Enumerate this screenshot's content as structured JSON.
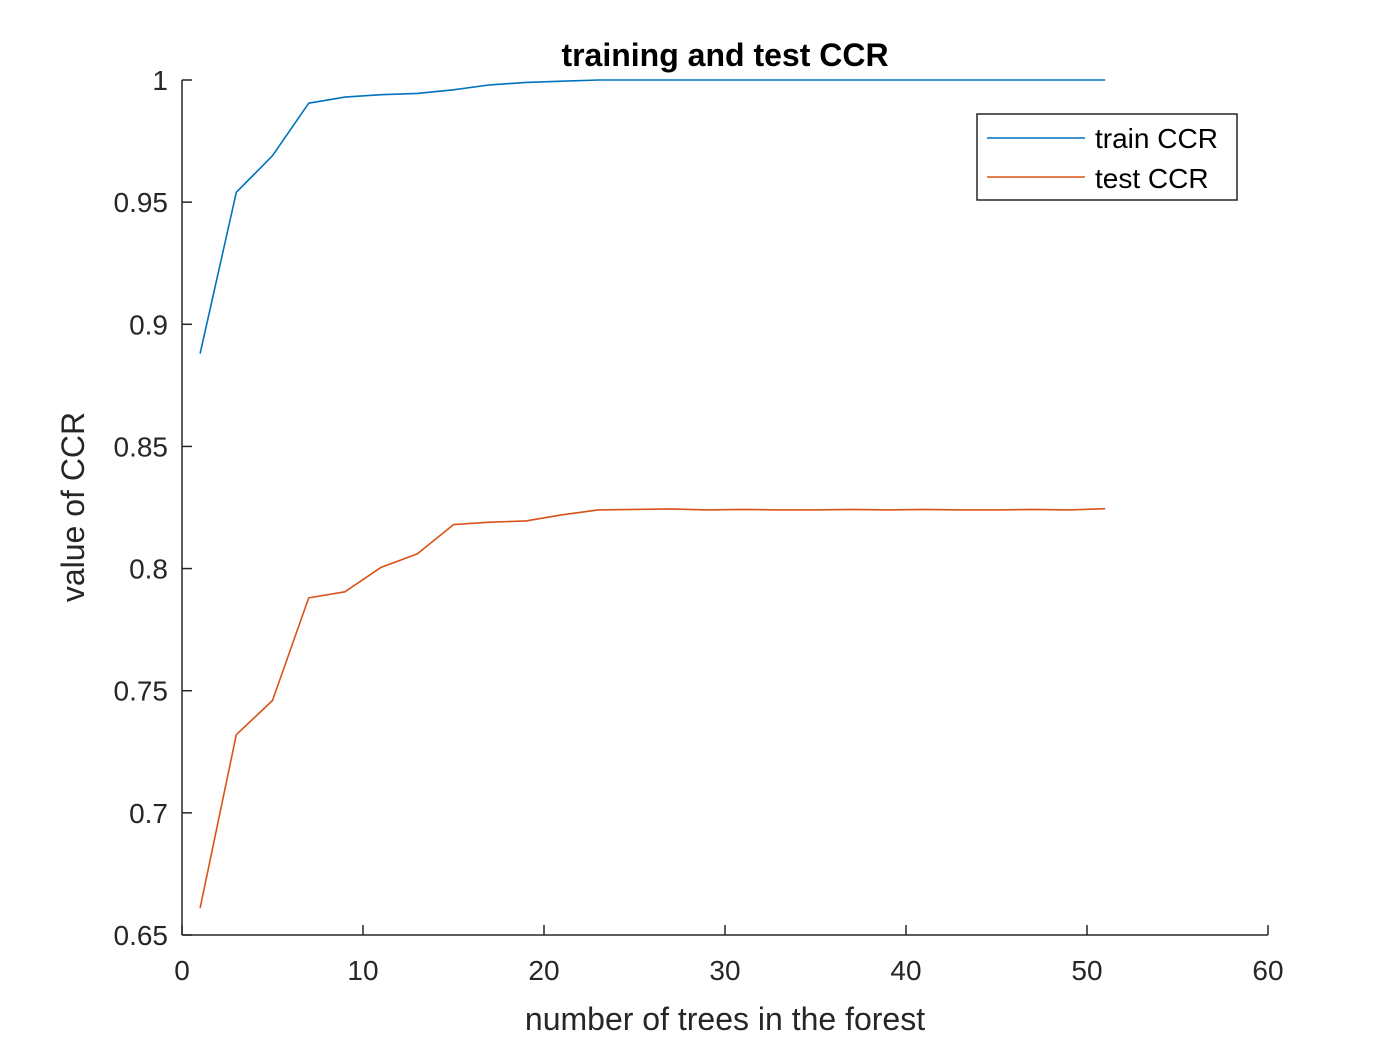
{
  "chart_data": {
    "type": "line",
    "title": "training and test CCR",
    "xlabel": "number of trees in the forest",
    "ylabel": "value of CCR",
    "xlim": [
      0,
      60
    ],
    "ylim": [
      0.65,
      1
    ],
    "xticks": [
      0,
      10,
      20,
      30,
      40,
      50,
      60
    ],
    "yticks": [
      0.65,
      0.7,
      0.75,
      0.8,
      0.85,
      0.9,
      0.95,
      1
    ],
    "xtick_labels": [
      "0",
      "10",
      "20",
      "30",
      "40",
      "50",
      "60"
    ],
    "ytick_labels": [
      "0.65",
      "0.7",
      "0.75",
      "0.8",
      "0.85",
      "0.9",
      "0.95",
      "1"
    ],
    "grid": false,
    "legend_position": "top-right",
    "x": [
      1,
      3,
      5,
      7,
      9,
      11,
      13,
      15,
      17,
      19,
      21,
      23,
      25,
      27,
      29,
      31,
      33,
      35,
      37,
      39,
      41,
      43,
      45,
      47,
      49,
      51
    ],
    "series": [
      {
        "name": "train CCR",
        "color": "#0072BD",
        "values": [
          0.888,
          0.954,
          0.969,
          0.9905,
          0.993,
          0.994,
          0.9945,
          0.996,
          0.998,
          0.999,
          0.9995,
          1,
          1,
          1,
          1,
          1,
          1,
          1,
          1,
          1,
          1,
          1,
          1,
          1,
          1,
          1
        ]
      },
      {
        "name": "test CCR",
        "color": "#D95319",
        "values": [
          0.661,
          0.732,
          0.746,
          0.788,
          0.7905,
          0.8005,
          0.806,
          0.818,
          0.819,
          0.8195,
          0.822,
          0.824,
          0.8242,
          0.8244,
          0.824,
          0.8242,
          0.824,
          0.824,
          0.8242,
          0.824,
          0.8242,
          0.824,
          0.824,
          0.8242,
          0.824,
          0.8245
        ]
      }
    ]
  }
}
